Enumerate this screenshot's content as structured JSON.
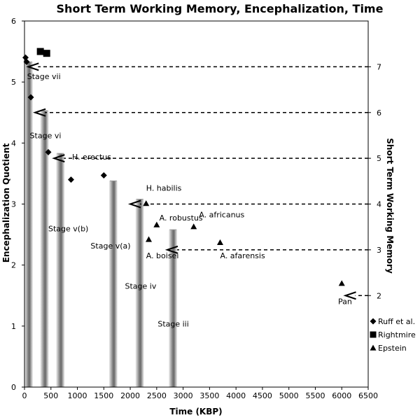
{
  "chart_data": {
    "type": "scatter",
    "title": "Short Term Working Memory, Encephalization, Time",
    "xlabel": "Time (KBP)",
    "ylabel": "Encephalization Quotient",
    "y2label": "Short Term Working Memory",
    "xlim": [
      0,
      6500
    ],
    "ylim": [
      0,
      6
    ],
    "y2lim": [
      0,
      8
    ],
    "x_ticks": [
      "0",
      "500",
      "1000",
      "1500",
      "2000",
      "2500",
      "3000",
      "3500",
      "4000",
      "4500",
      "5000",
      "5500",
      "6000",
      "6500"
    ],
    "y_ticks": [
      "0",
      "1",
      "2",
      "3",
      "4",
      "5",
      "6"
    ],
    "y2_ticks": [
      "2",
      "3",
      "4",
      "5",
      "6",
      "7"
    ],
    "x_tick_values": [
      0,
      500,
      1000,
      1500,
      2000,
      2500,
      3000,
      3500,
      4000,
      4500,
      5000,
      5500,
      6000,
      6500
    ],
    "y_tick_values": [
      0,
      1,
      2,
      3,
      4,
      5,
      6
    ],
    "y2_tick_values": [
      2,
      3,
      4,
      5,
      6,
      7
    ],
    "series": [
      {
        "name": "Ruff et al.",
        "marker": "diamond",
        "points": [
          [
            20,
            5.4
          ],
          [
            40,
            5.33
          ],
          [
            120,
            4.75
          ],
          [
            450,
            3.85
          ],
          [
            880,
            3.4
          ],
          [
            1500,
            3.47
          ]
        ]
      },
      {
        "name": "Rightmire",
        "marker": "square",
        "points": [
          [
            300,
            5.5
          ],
          [
            420,
            5.47
          ]
        ]
      },
      {
        "name": "Epstein",
        "marker": "triangle",
        "points": [
          [
            2300,
            3.01
          ],
          [
            2500,
            2.66
          ],
          [
            2350,
            2.42
          ],
          [
            3200,
            2.63
          ],
          [
            3700,
            2.37
          ],
          [
            6000,
            1.7
          ]
        ]
      }
    ],
    "bars": [
      {
        "x": 0,
        "value": 5.33
      },
      {
        "x": 300,
        "value": 4.53
      },
      {
        "x": 600,
        "value": 3.83
      },
      {
        "x": 1600,
        "value": 3.38
      },
      {
        "x": 2100,
        "value": 3.08
      },
      {
        "x": 2730,
        "value": 2.58
      }
    ],
    "arrows": [
      {
        "memory": 7,
        "from_x": 6500,
        "to_x": 70
      },
      {
        "memory": 6,
        "from_x": 6500,
        "to_x": 200
      },
      {
        "memory": 5,
        "from_x": 6500,
        "to_x": 560
      },
      {
        "memory": 4,
        "from_x": 6500,
        "to_x": 2000
      },
      {
        "memory": 3,
        "from_x": 6500,
        "to_x": 2700
      },
      {
        "memory": 2,
        "from_x": 6500,
        "to_x": 6070
      }
    ],
    "annotations": [
      {
        "text": "Stage vii",
        "x": 50,
        "y": 5.05
      },
      {
        "text": "Stage vi",
        "x": 100,
        "y": 4.08
      },
      {
        "text": "H. erectus",
        "x": 900,
        "y": 3.73
      },
      {
        "text": "H. habilis",
        "x": 2300,
        "y": 3.22
      },
      {
        "text": "Stage v(b)",
        "x": 450,
        "y": 2.55
      },
      {
        "text": "A. africanus",
        "x": 3300,
        "y": 2.78
      },
      {
        "text": "A. robustus",
        "x": 2550,
        "y": 2.73
      },
      {
        "text": "Stage v(a)",
        "x": 1250,
        "y": 2.27
      },
      {
        "text": "A. boisei",
        "x": 2300,
        "y": 2.11
      },
      {
        "text": "A. afarensis",
        "x": 3700,
        "y": 2.11
      },
      {
        "text": "Stage iv",
        "x": 1900,
        "y": 1.61
      },
      {
        "text": "Pan",
        "x": 5930,
        "y": 1.36
      },
      {
        "text": "Stage iii",
        "x": 2520,
        "y": 0.99
      }
    ],
    "legend": [
      {
        "label": "Ruff et al.",
        "marker": "diamond"
      },
      {
        "label": "Rightmire",
        "marker": "square"
      },
      {
        "label": "Epstein",
        "marker": "triangle"
      }
    ],
    "legend_position": "bottom-right"
  }
}
